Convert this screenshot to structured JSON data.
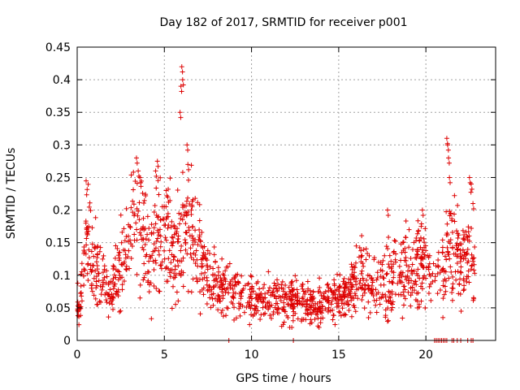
{
  "chart_data": {
    "type": "scatter",
    "title": "Day 182 of 2017, SRMTID for receiver p001",
    "xlabel": "GPS time / hours",
    "ylabel": "SRMTID / TECUs",
    "xlim": [
      0,
      24
    ],
    "ylim": [
      0,
      0.45
    ],
    "xticks": [
      "0",
      "5",
      "10",
      "15",
      "20"
    ],
    "yticks": [
      "0",
      "0.05",
      "0.1",
      "0.15",
      "0.2",
      "0.25",
      "0.3",
      "0.35",
      "0.4",
      "0.45"
    ],
    "grid": true,
    "marker": "+",
    "color": "#dd0000",
    "trend": [
      [
        0.0,
        0.05
      ],
      [
        0.2,
        0.06
      ],
      [
        0.3,
        0.12
      ],
      [
        0.5,
        0.15
      ],
      [
        0.7,
        0.14
      ],
      [
        1.0,
        0.11
      ],
      [
        1.3,
        0.1
      ],
      [
        1.6,
        0.09
      ],
      [
        2.0,
        0.07
      ],
      [
        2.3,
        0.1
      ],
      [
        2.7,
        0.13
      ],
      [
        3.0,
        0.15
      ],
      [
        3.3,
        0.19
      ],
      [
        3.6,
        0.17
      ],
      [
        4.0,
        0.15
      ],
      [
        4.3,
        0.13
      ],
      [
        4.6,
        0.15
      ],
      [
        5.0,
        0.17
      ],
      [
        5.3,
        0.16
      ],
      [
        5.6,
        0.13
      ],
      [
        5.9,
        0.15
      ],
      [
        6.2,
        0.17
      ],
      [
        6.5,
        0.16
      ],
      [
        6.9,
        0.13
      ],
      [
        7.3,
        0.11
      ],
      [
        7.7,
        0.09
      ],
      [
        8.2,
        0.08
      ],
      [
        8.7,
        0.08
      ],
      [
        9.3,
        0.07
      ],
      [
        10.0,
        0.065
      ],
      [
        10.6,
        0.06
      ],
      [
        11.2,
        0.06
      ],
      [
        11.8,
        0.06
      ],
      [
        12.4,
        0.065
      ],
      [
        13.0,
        0.06
      ],
      [
        13.6,
        0.055
      ],
      [
        14.2,
        0.06
      ],
      [
        14.8,
        0.065
      ],
      [
        15.4,
        0.07
      ],
      [
        15.9,
        0.08
      ],
      [
        16.3,
        0.095
      ],
      [
        16.6,
        0.09
      ],
      [
        17.0,
        0.08
      ],
      [
        17.4,
        0.08
      ],
      [
        17.8,
        0.09
      ],
      [
        18.2,
        0.1
      ],
      [
        18.6,
        0.11
      ],
      [
        19.0,
        0.11
      ],
      [
        19.3,
        0.1
      ],
      [
        19.6,
        0.13
      ],
      [
        19.9,
        0.11
      ],
      [
        20.2,
        0.1
      ],
      [
        20.5,
        0.09
      ],
      [
        20.8,
        0.1
      ],
      [
        21.1,
        0.13
      ],
      [
        21.4,
        0.17
      ],
      [
        21.7,
        0.14
      ],
      [
        22.0,
        0.11
      ],
      [
        22.3,
        0.12
      ],
      [
        22.6,
        0.15
      ],
      [
        22.8,
        0.12
      ]
    ],
    "spikes": [
      [
        0.5,
        0.18
      ],
      [
        0.55,
        0.17
      ],
      [
        3.4,
        0.28
      ],
      [
        3.5,
        0.26
      ],
      [
        3.6,
        0.25
      ],
      [
        4.5,
        0.26
      ],
      [
        4.6,
        0.275
      ],
      [
        5.1,
        0.23
      ],
      [
        5.2,
        0.22
      ],
      [
        5.9,
        0.35
      ],
      [
        5.95,
        0.39
      ],
      [
        6.0,
        0.42
      ],
      [
        6.05,
        0.4
      ],
      [
        6.3,
        0.3
      ],
      [
        6.35,
        0.27
      ],
      [
        17.8,
        0.2
      ],
      [
        19.8,
        0.2
      ],
      [
        21.2,
        0.31
      ],
      [
        21.25,
        0.3
      ],
      [
        21.3,
        0.28
      ],
      [
        21.35,
        0.25
      ],
      [
        22.5,
        0.25
      ],
      [
        22.6,
        0.24
      ],
      [
        22.7,
        0.21
      ]
    ],
    "zero_points": [
      8.7,
      12.4,
      20.5,
      20.6,
      20.7,
      20.8,
      20.9,
      21.0,
      21.1,
      21.2,
      21.5,
      21.6,
      21.8,
      22.0,
      22.4,
      22.6,
      22.7
    ]
  }
}
